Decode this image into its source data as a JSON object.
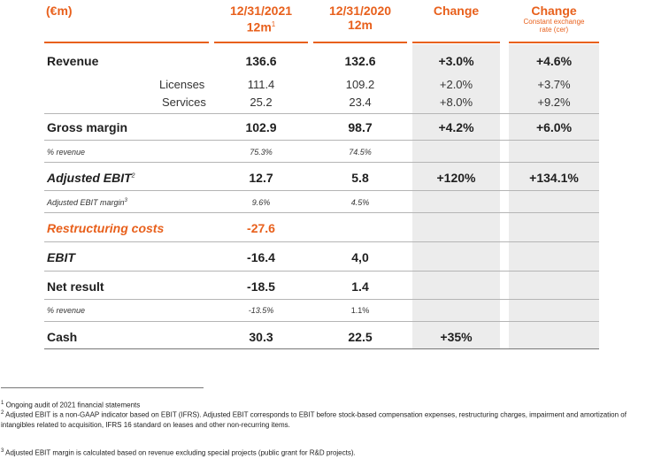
{
  "header": {
    "unit": "(€m)",
    "col1_line1": "12/31/2021",
    "col1_line2": "12m",
    "col1_sup": "1",
    "col2_line1": "12/31/2020",
    "col2_line2": "12m",
    "col3_line1": "Change",
    "col4_line1": "Change",
    "col4_sub1": "Constant exchange",
    "col4_sub2": "rate (cer)"
  },
  "rows": [
    {
      "label": "Revenue",
      "v2021": "136.6",
      "v2020": "132.6",
      "change": "+3.0%",
      "cer": "+4.6%"
    },
    {
      "label": "Licenses",
      "v2021": "111.4",
      "v2020": "109.2",
      "change": "+2.0%",
      "cer": "+3.7%"
    },
    {
      "label": "Services",
      "v2021": "25.2",
      "v2020": "23.4",
      "change": "+8.0%",
      "cer": "+9.2%"
    },
    {
      "label": "Gross margin",
      "v2021": "102.9",
      "v2020": "98.7",
      "change": "+4.2%",
      "cer": "+6.0%"
    },
    {
      "label": "% revenue",
      "v2021": "75.3%",
      "v2020": "74.5%"
    },
    {
      "label": "Adjusted EBIT",
      "sup": "2",
      "v2021": "12.7",
      "v2020": "5.8",
      "change": "+120%",
      "cer": "+134.1%"
    },
    {
      "label": "Adjusted EBIT margin",
      "sup": "3",
      "v2021": "9.6%",
      "v2020": "4.5%"
    },
    {
      "label": "Restructuring costs",
      "v2021": "-27.6"
    },
    {
      "label": "EBIT",
      "v2021": "-16.4",
      "v2020": "4,0"
    },
    {
      "label": "Net result",
      "v2021": "-18.5",
      "v2020": "1.4"
    },
    {
      "label": "% revenue",
      "v2021": "-13.5%",
      "v2020": "1.1%"
    },
    {
      "label": "Cash",
      "v2021": "30.3",
      "v2020": "22.5",
      "change": "+35%"
    }
  ],
  "footnotes": {
    "n1_num": "1",
    "n1": "Ongoing audit of 2021 financial statements",
    "n2_num": "2",
    "n2": "Adjusted EBIT is a non-GAAP indicator based on EBIT (IFRS). Adjusted EBIT corresponds to EBIT before stock-based compensation expenses, restructuring charges, impairment and amortization of intangibles related to acquisition, IFRS 16 standard on leases and other non-recurring items.",
    "n3_num": "3",
    "n3": "Adjusted EBIT margin is calculated based on revenue excluding special projects (public grant for R&D projects)."
  },
  "colors": {
    "accent": "#e8601c",
    "shade": "#ececec"
  }
}
